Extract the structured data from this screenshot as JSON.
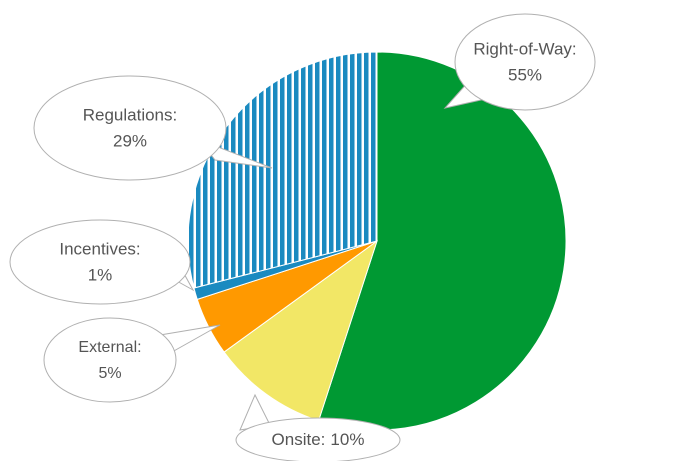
{
  "chart_data": {
    "type": "pie",
    "categories": [
      "Right-of-Way:",
      "Onsite:",
      "External:",
      "Incentives:",
      "Regulations:"
    ],
    "values": [
      55,
      10,
      5,
      1,
      29
    ],
    "value_labels": [
      "55%",
      "10%",
      "5%",
      "1%",
      "29%"
    ],
    "colors": [
      "#009933",
      "#f2e766",
      "#ff9900",
      "#1a8ac0",
      "#1a8ac0"
    ],
    "patterns": [
      null,
      null,
      null,
      null,
      "vertical-stripes"
    ]
  }
}
